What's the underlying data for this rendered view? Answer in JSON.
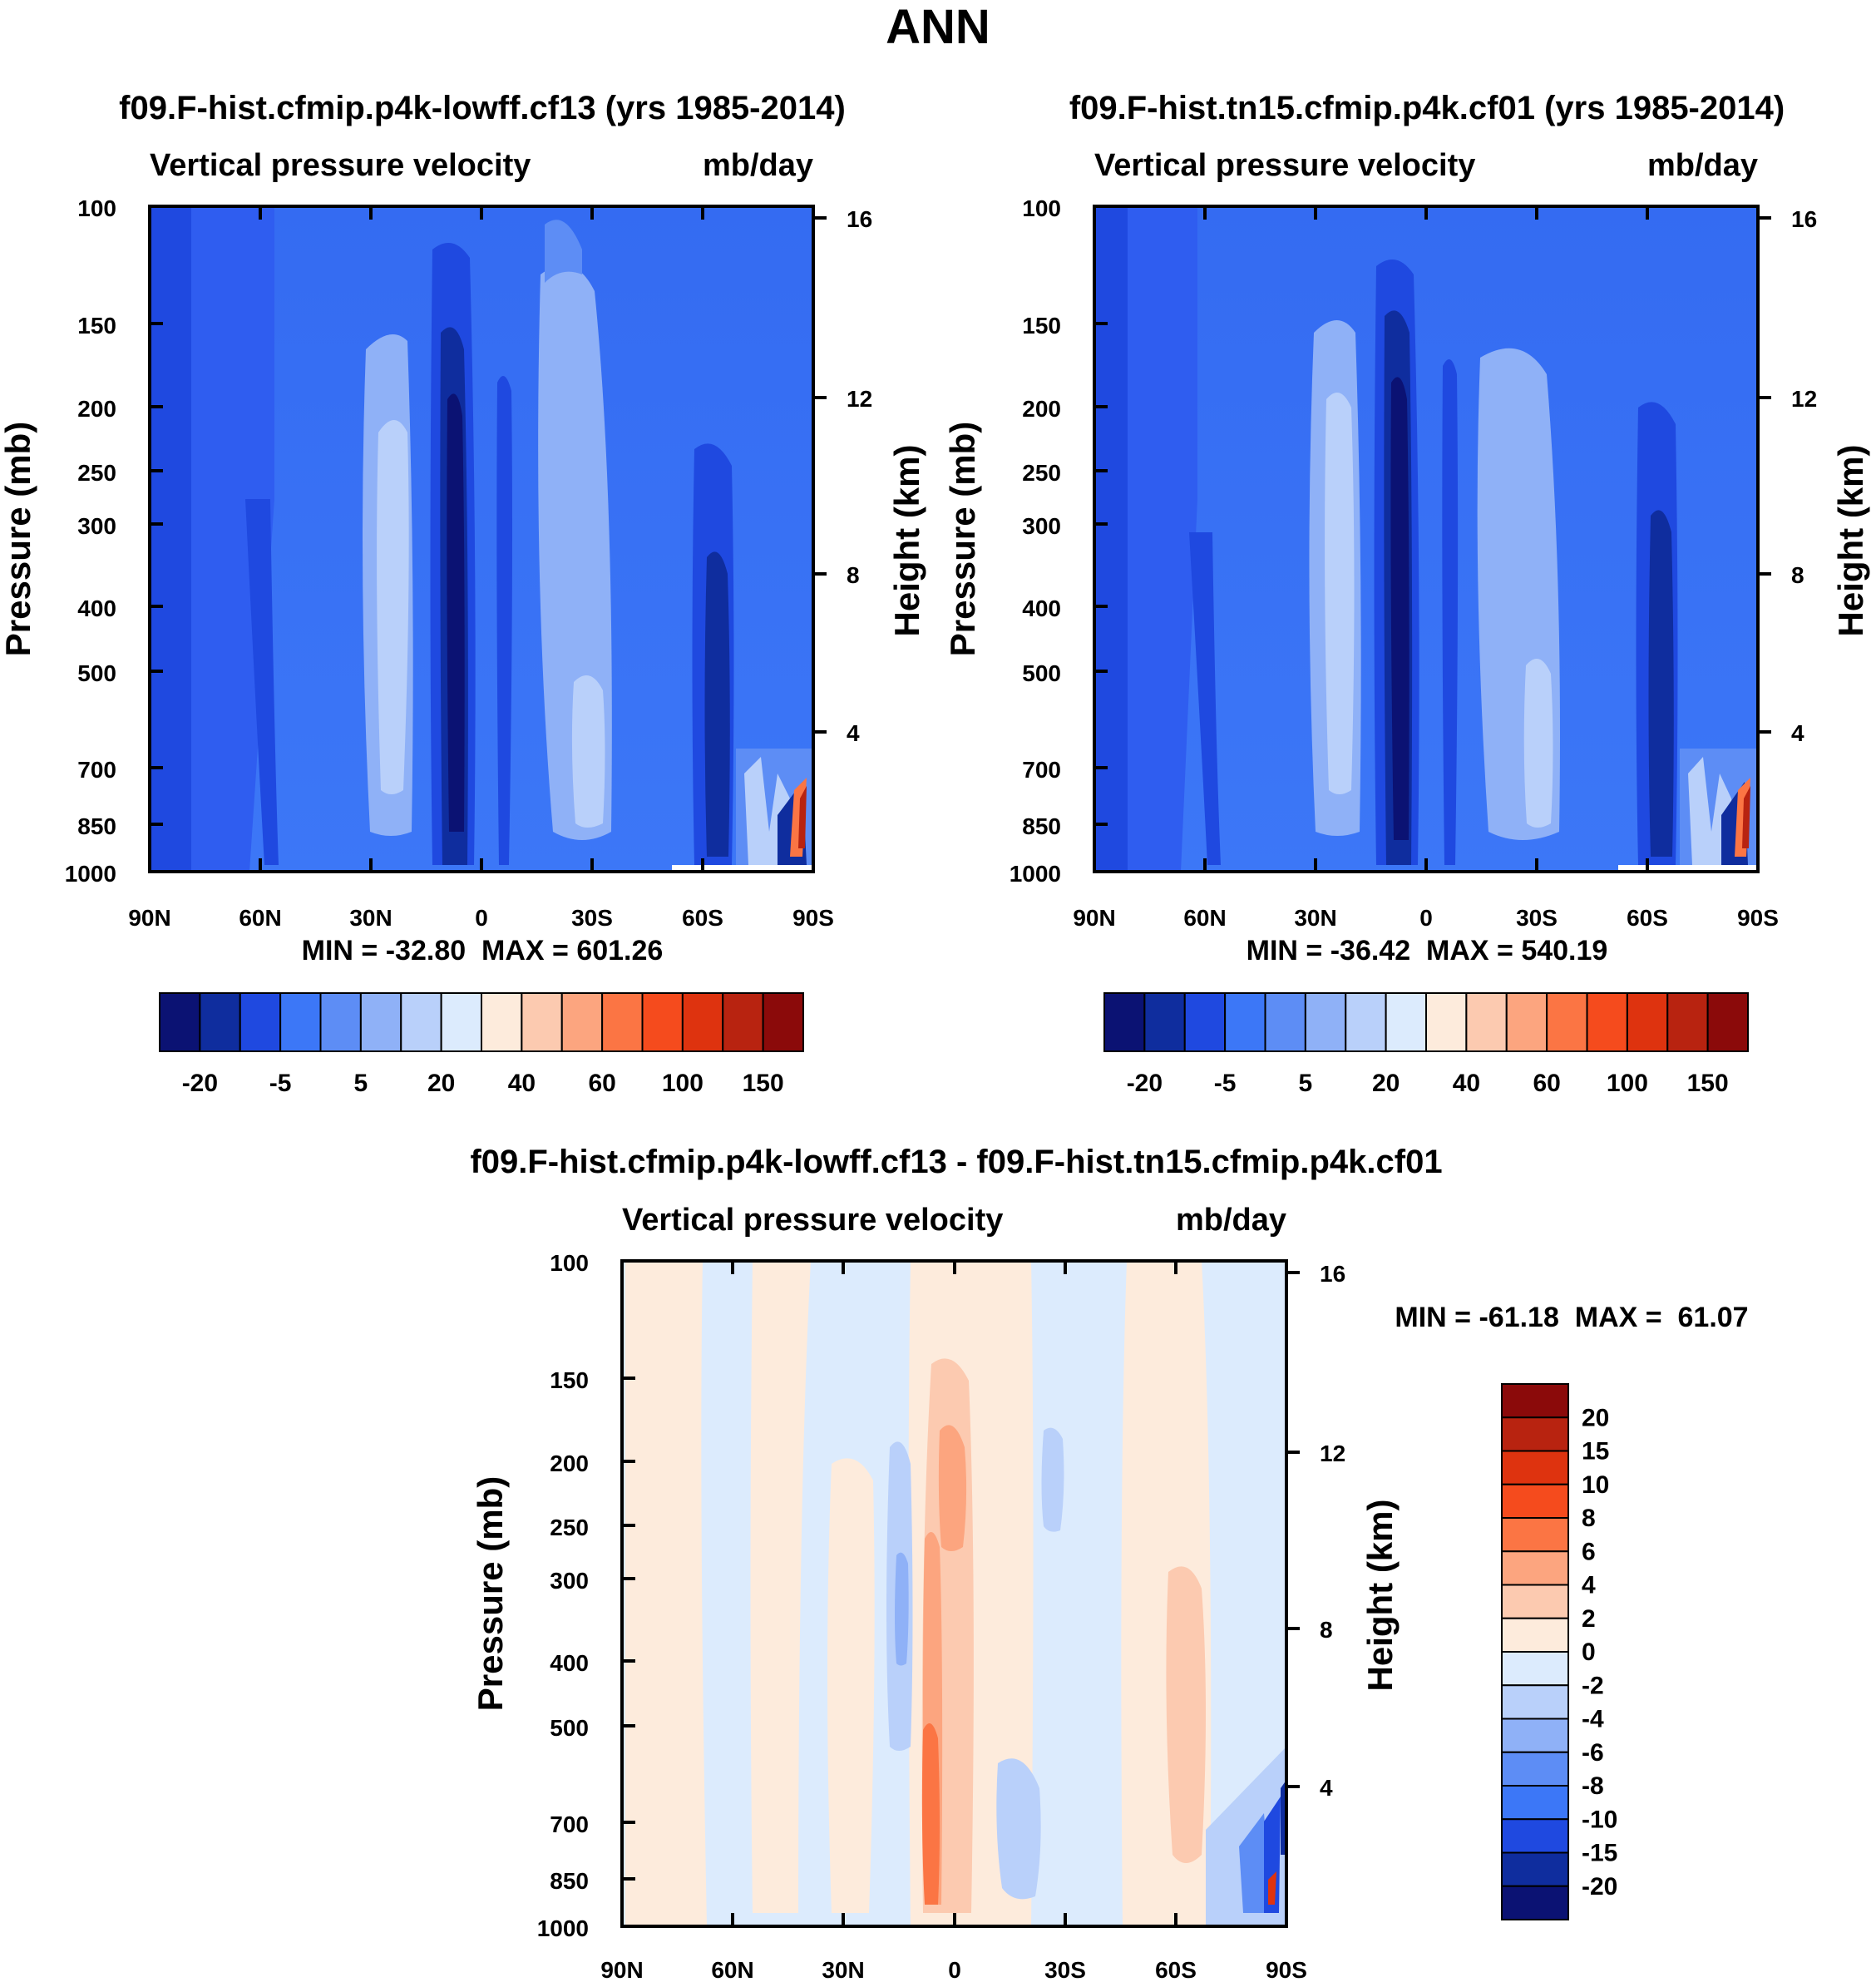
{
  "title": "ANN",
  "colors": {
    "frame": "#000000",
    "blue_bg": "#3c77f7",
    "blue_dark": "#0f2d9e"
  },
  "chart_data": [
    {
      "type": "heatmap",
      "title": "f09.F-hist.cfmip.p4k-lowff.cf13 (yrs 1985-2014)",
      "variable": "Vertical pressure velocity",
      "units": "mb/day",
      "ylabel": "Pressure (mb)",
      "ylabel_right": "Height (km)",
      "x_ticks": [
        "90N",
        "60N",
        "30N",
        "0",
        "30S",
        "60S",
        "90S"
      ],
      "xlim": [
        90,
        -90
      ],
      "y_ticks": [
        100,
        150,
        200,
        250,
        300,
        400,
        500,
        700,
        850,
        1000
      ],
      "ylim": [
        1000,
        100
      ],
      "y_scale": "log",
      "right_ticks": [
        16,
        12,
        8,
        4
      ],
      "stats": "MIN = -32.80  MAX = 601.26",
      "min": -32.8,
      "max": 601.26,
      "colorbar": {
        "orientation": "horizontal",
        "labels": [
          "-20",
          "-5",
          "5",
          "20",
          "40",
          "60",
          "100",
          "150"
        ],
        "colors": [
          "#0b1273",
          "#0f2d9e",
          "#1f49e0",
          "#3c77f7",
          "#5d8df5",
          "#8fb1f7",
          "#b9d0fa",
          "#dcebfd",
          "#fdebdc",
          "#fccab0",
          "#fca57f",
          "#fb7544",
          "#f54b1d",
          "#de330f",
          "#b82310",
          "#8b0a0a"
        ]
      },
      "features": [
        {
          "lat": 6,
          "p_top": 170,
          "p_bottom": 1000,
          "value": -20
        },
        {
          "lat": 25,
          "p_top": 170,
          "p_bottom": 850,
          "value": 20
        },
        {
          "lat": -19,
          "p_top": 170,
          "p_bottom": 850,
          "value": 20
        },
        {
          "lat": -62,
          "p_top": 240,
          "p_bottom": 1000,
          "value": -10
        },
        {
          "lat": 58,
          "p_top": 280,
          "p_bottom": 1000,
          "value": -8
        }
      ]
    },
    {
      "type": "heatmap",
      "title": "f09.F-hist.tn15.cfmip.p4k.cf01 (yrs 1985-2014)",
      "variable": "Vertical pressure velocity",
      "units": "mb/day",
      "ylabel": "Pressure (mb)",
      "ylabel_right": "Height (km)",
      "x_ticks": [
        "90N",
        "60N",
        "30N",
        "0",
        "30S",
        "60S",
        "90S"
      ],
      "xlim": [
        90,
        -90
      ],
      "y_ticks": [
        100,
        150,
        200,
        250,
        300,
        400,
        500,
        700,
        850,
        1000
      ],
      "ylim": [
        1000,
        100
      ],
      "y_scale": "log",
      "right_ticks": [
        16,
        12,
        8,
        4
      ],
      "stats": "MIN = -36.42  MAX = 540.19",
      "min": -36.42,
      "max": 540.19,
      "colorbar": {
        "orientation": "horizontal",
        "labels": [
          "-20",
          "-5",
          "5",
          "20",
          "40",
          "60",
          "100",
          "150"
        ],
        "colors": [
          "#0b1273",
          "#0f2d9e",
          "#1f49e0",
          "#3c77f7",
          "#5d8df5",
          "#8fb1f7",
          "#b9d0fa",
          "#dcebfd",
          "#fdebdc",
          "#fccab0",
          "#fca57f",
          "#fb7544",
          "#f54b1d",
          "#de330f",
          "#b82310",
          "#8b0a0a"
        ]
      },
      "features": [
        {
          "lat": 6,
          "p_top": 160,
          "p_bottom": 1000,
          "value": -20
        },
        {
          "lat": 27,
          "p_top": 170,
          "p_bottom": 850,
          "value": 20
        },
        {
          "lat": -22,
          "p_top": 180,
          "p_bottom": 850,
          "value": 20
        },
        {
          "lat": -62,
          "p_top": 260,
          "p_bottom": 1000,
          "value": -10
        },
        {
          "lat": 58,
          "p_top": 300,
          "p_bottom": 1000,
          "value": -8
        }
      ]
    },
    {
      "type": "heatmap",
      "title": "f09.F-hist.cfmip.p4k-lowff.cf13 - f09.F-hist.tn15.cfmip.p4k.cf01",
      "variable": "Vertical pressure velocity",
      "units": "mb/day",
      "ylabel": "Pressure (mb)",
      "ylabel_right": "Height (km)",
      "x_ticks": [
        "90N",
        "60N",
        "30N",
        "0",
        "30S",
        "60S",
        "90S"
      ],
      "xlim": [
        90,
        -90
      ],
      "y_ticks": [
        100,
        150,
        200,
        250,
        300,
        400,
        500,
        700,
        850,
        1000
      ],
      "ylim": [
        1000,
        100
      ],
      "y_scale": "log",
      "right_ticks": [
        16,
        12,
        8,
        4
      ],
      "stats": "MIN = -61.18  MAX =  61.07",
      "min": -61.18,
      "max": 61.07,
      "colorbar": {
        "orientation": "vertical",
        "labels": [
          "20",
          "15",
          "10",
          "8",
          "6",
          "4",
          "2",
          "0",
          "-2",
          "-4",
          "-6",
          "-8",
          "-10",
          "-15",
          "-20"
        ],
        "colors": [
          "#8b0a0a",
          "#b82310",
          "#de330f",
          "#f54b1d",
          "#fb7544",
          "#fca57f",
          "#fccab0",
          "#fdebdc",
          "#dcebfd",
          "#b9d0fa",
          "#8fb1f7",
          "#5d8df5",
          "#3c77f7",
          "#1f49e0",
          "#0f2d9e",
          "#0b1273"
        ]
      },
      "features": [
        {
          "lat": 4,
          "p_top": 140,
          "p_bottom": 1000,
          "value": 4
        },
        {
          "lat": 4,
          "p_top": 550,
          "p_bottom": 950,
          "value": 8
        },
        {
          "lat": -60,
          "p_top": 300,
          "p_bottom": 900,
          "value": 2
        },
        {
          "lat": 15,
          "p_top": 190,
          "p_bottom": 450,
          "value": -4
        }
      ]
    }
  ]
}
